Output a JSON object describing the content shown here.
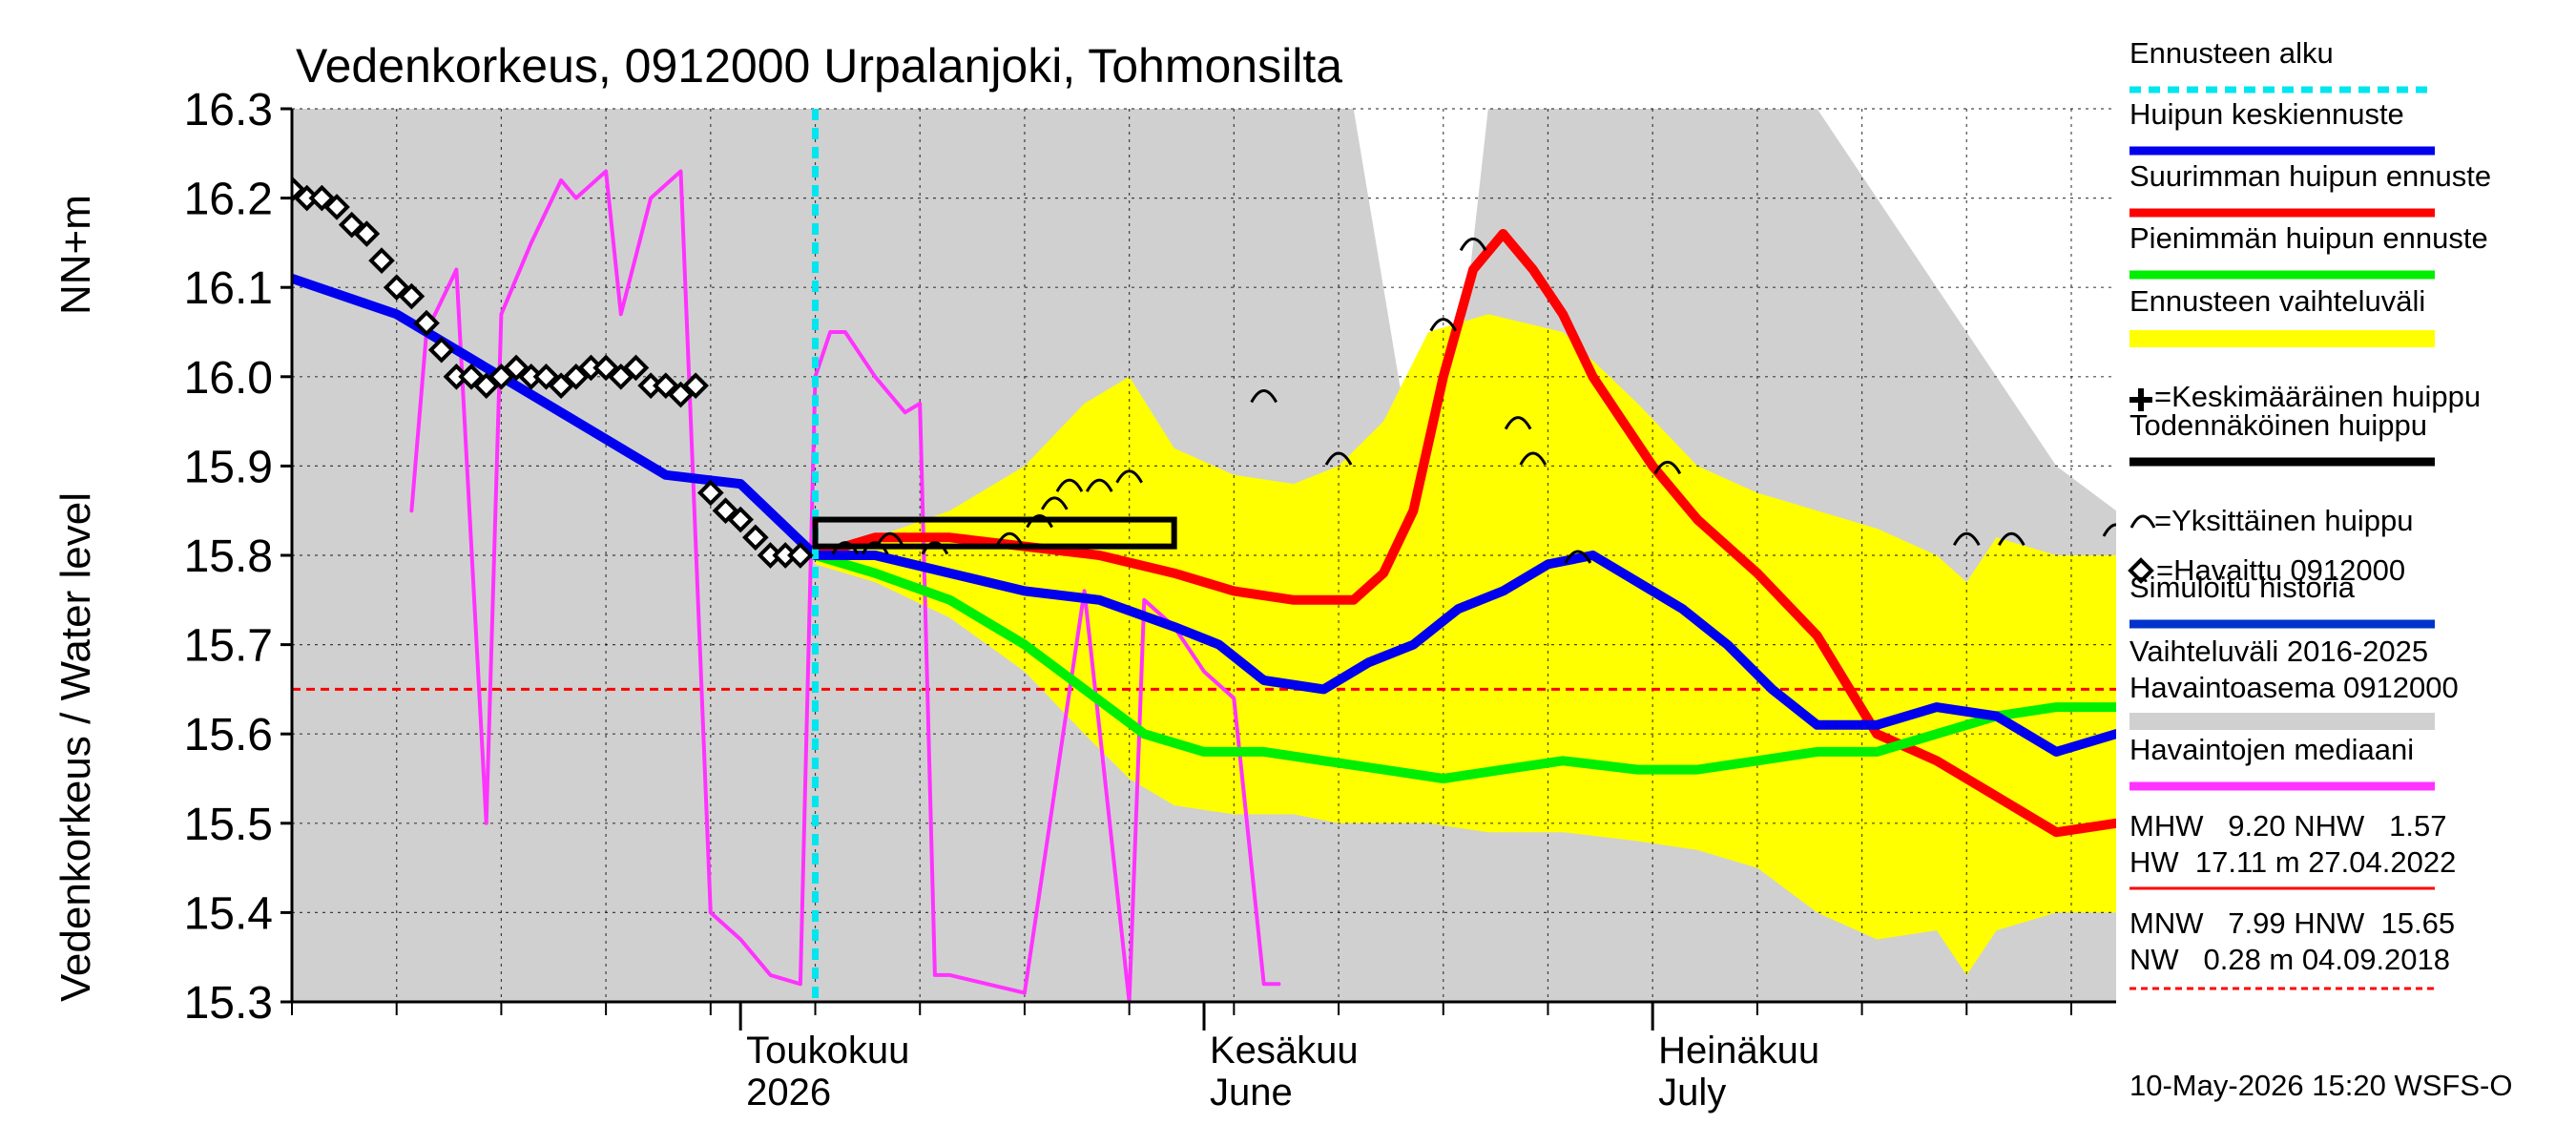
{
  "chart_data": {
    "type": "line",
    "title": "Vedenkorkeus, 0912000 Urpalanjoki, Tohmonsilta",
    "ylabel_left": "Vedenkorkeus / Water level",
    "ylabel_right": "NN+m",
    "ylim": [
      15.3,
      16.3
    ],
    "yticks": [
      "15.3",
      "15.4",
      "15.5",
      "15.6",
      "15.7",
      "15.8",
      "15.9",
      "16.0",
      "16.1",
      "16.2",
      "16.3"
    ],
    "x_range": [
      "2026-04-01",
      "2026-08-01"
    ],
    "x_month_labels": [
      {
        "date": "2026-05-01",
        "line1": "Toukokuu",
        "line2": "2026"
      },
      {
        "date": "2026-06-01",
        "line1": "Kesäkuu",
        "line2": "June"
      },
      {
        "date": "2026-07-01",
        "line1": "Heinäkuu",
        "line2": "July"
      }
    ],
    "grid": true,
    "forecast_start": "2026-05-06",
    "series": [
      {
        "name": "Vaihteluväli 2016-2025 Havaintoasema 0912000",
        "type": "band",
        "color": "#d0d0d0",
        "x": [
          "2026-04-01",
          "2026-04-15",
          "2026-04-22",
          "2026-05-01",
          "2026-05-06",
          "2026-05-11",
          "2026-05-16",
          "2026-05-21",
          "2026-05-26",
          "2026-06-01",
          "2026-06-06",
          "2026-06-11",
          "2026-06-14",
          "2026-06-16",
          "2026-06-18",
          "2026-06-20",
          "2026-06-22",
          "2026-06-25",
          "2026-06-28",
          "2026-07-01",
          "2026-07-04",
          "2026-07-08",
          "2026-07-12",
          "2026-07-16",
          "2026-07-20",
          "2026-07-24",
          "2026-07-28",
          "2026-08-01"
        ],
        "upper": [
          16.3,
          16.3,
          16.3,
          16.3,
          16.3,
          16.3,
          16.3,
          16.3,
          16.3,
          16.3,
          16.3,
          16.3,
          16.0,
          15.8,
          16.0,
          16.3,
          16.3,
          16.3,
          16.3,
          16.3,
          16.3,
          16.3,
          16.3,
          16.2,
          16.1,
          16.0,
          15.9,
          15.85
        ],
        "lower": [
          15.3,
          15.3,
          15.3,
          15.3,
          15.3,
          15.3,
          15.3,
          15.3,
          15.3,
          15.3,
          15.3,
          15.3,
          15.3,
          15.3,
          15.3,
          15.3,
          15.3,
          15.3,
          15.3,
          15.3,
          15.3,
          15.3,
          15.3,
          15.3,
          15.3,
          15.3,
          15.3,
          15.3
        ]
      },
      {
        "name": "Ennusteen vaihteluväli",
        "type": "band",
        "color": "#ffff00",
        "x": [
          "2026-05-06",
          "2026-05-10",
          "2026-05-15",
          "2026-05-20",
          "2026-05-24",
          "2026-05-27",
          "2026-05-30",
          "2026-06-03",
          "2026-06-07",
          "2026-06-10",
          "2026-06-13",
          "2026-06-16",
          "2026-06-20",
          "2026-06-25",
          "2026-06-30",
          "2026-07-04",
          "2026-07-08",
          "2026-07-12",
          "2026-07-16",
          "2026-07-20",
          "2026-07-22",
          "2026-07-24",
          "2026-07-28",
          "2026-08-01"
        ],
        "upper": [
          15.8,
          15.82,
          15.85,
          15.9,
          15.97,
          16.0,
          15.92,
          15.89,
          15.88,
          15.9,
          15.95,
          16.05,
          16.07,
          16.05,
          15.97,
          15.9,
          15.87,
          15.85,
          15.83,
          15.8,
          15.77,
          15.82,
          15.8,
          15.8
        ],
        "lower": [
          15.79,
          15.77,
          15.73,
          15.67,
          15.6,
          15.55,
          15.52,
          15.51,
          15.51,
          15.5,
          15.5,
          15.5,
          15.49,
          15.49,
          15.48,
          15.47,
          15.45,
          15.4,
          15.37,
          15.38,
          15.33,
          15.38,
          15.4,
          15.4
        ]
      },
      {
        "name": "Havaintojen mediaani",
        "type": "line",
        "color": "#ff33ff",
        "x": [
          "2026-04-09",
          "2026-04-10",
          "2026-04-12",
          "2026-04-14",
          "2026-04-15",
          "2026-04-17",
          "2026-04-19",
          "2026-04-20",
          "2026-04-22",
          "2026-04-23",
          "2026-04-25",
          "2026-04-27",
          "2026-04-29",
          "2026-05-01",
          "2026-05-03",
          "2026-05-05",
          "2026-05-06",
          "2026-05-07",
          "2026-05-08",
          "2026-05-10",
          "2026-05-12",
          "2026-05-13",
          "2026-05-14",
          "2026-05-15",
          "2026-05-20",
          "2026-05-24",
          "2026-05-27",
          "2026-05-28",
          "2026-05-30",
          "2026-06-01",
          "2026-06-03",
          "2026-06-05",
          "2026-06-06"
        ],
        "y": [
          15.85,
          16.05,
          16.12,
          15.5,
          16.07,
          16.15,
          16.22,
          16.2,
          16.23,
          16.07,
          16.2,
          16.23,
          15.4,
          15.37,
          15.33,
          15.32,
          16.0,
          16.05,
          16.05,
          16.0,
          15.96,
          15.97,
          15.33,
          15.33,
          15.31,
          15.76,
          15.3,
          15.75,
          15.72,
          15.67,
          15.64,
          15.32,
          15.32
        ]
      },
      {
        "name": "Suurimman huipun ennuste",
        "type": "line",
        "color": "#ff0000",
        "x": [
          "2026-05-06",
          "2026-05-10",
          "2026-05-15",
          "2026-05-20",
          "2026-05-25",
          "2026-05-30",
          "2026-06-03",
          "2026-06-07",
          "2026-06-11",
          "2026-06-13",
          "2026-06-15",
          "2026-06-17",
          "2026-06-19",
          "2026-06-21",
          "2026-06-23",
          "2026-06-25",
          "2026-06-27",
          "2026-06-29",
          "2026-07-01",
          "2026-07-04",
          "2026-07-08",
          "2026-07-12",
          "2026-07-16",
          "2026-07-20",
          "2026-07-24",
          "2026-07-28",
          "2026-08-01"
        ],
        "y": [
          15.8,
          15.82,
          15.82,
          15.81,
          15.8,
          15.78,
          15.76,
          15.75,
          15.75,
          15.78,
          15.85,
          16.0,
          16.12,
          16.16,
          16.12,
          16.07,
          16.0,
          15.95,
          15.9,
          15.84,
          15.78,
          15.71,
          15.6,
          15.57,
          15.53,
          15.49,
          15.5
        ]
      },
      {
        "name": "Pienimmän huipun ennuste",
        "type": "line",
        "color": "#00ee00",
        "x": [
          "2026-05-06",
          "2026-05-10",
          "2026-05-15",
          "2026-05-20",
          "2026-05-24",
          "2026-05-28",
          "2026-06-01",
          "2026-06-05",
          "2026-06-09",
          "2026-06-13",
          "2026-06-17",
          "2026-06-21",
          "2026-06-25",
          "2026-06-30",
          "2026-07-04",
          "2026-07-08",
          "2026-07-12",
          "2026-07-16",
          "2026-07-20",
          "2026-07-24",
          "2026-07-28",
          "2026-08-01"
        ],
        "y": [
          15.8,
          15.78,
          15.75,
          15.7,
          15.65,
          15.6,
          15.58,
          15.58,
          15.57,
          15.56,
          15.55,
          15.56,
          15.57,
          15.56,
          15.56,
          15.57,
          15.58,
          15.58,
          15.6,
          15.62,
          15.63,
          15.63
        ]
      },
      {
        "name": "Huipun keskiennuste",
        "type": "line",
        "color": "#0000ee",
        "x": [
          "2026-04-01",
          "2026-04-08",
          "2026-04-15",
          "2026-04-22",
          "2026-04-26",
          "2026-05-01",
          "2026-05-06",
          "2026-05-10",
          "2026-05-15",
          "2026-05-20",
          "2026-05-25",
          "2026-05-30",
          "2026-06-02",
          "2026-06-05",
          "2026-06-09",
          "2026-06-12",
          "2026-06-15",
          "2026-06-18",
          "2026-06-21",
          "2026-06-24",
          "2026-06-27",
          "2026-06-30",
          "2026-07-03",
          "2026-07-06",
          "2026-07-09",
          "2026-07-12",
          "2026-07-16",
          "2026-07-20",
          "2026-07-24",
          "2026-07-28",
          "2026-08-01"
        ],
        "y": [
          16.11,
          16.07,
          16.0,
          15.93,
          15.89,
          15.88,
          15.8,
          15.8,
          15.78,
          15.76,
          15.75,
          15.72,
          15.7,
          15.66,
          15.65,
          15.68,
          15.7,
          15.74,
          15.76,
          15.79,
          15.8,
          15.77,
          15.74,
          15.7,
          15.65,
          15.61,
          15.61,
          15.63,
          15.62,
          15.58,
          15.6
        ]
      },
      {
        "name": "Havaittu 0912000",
        "type": "scatter",
        "color": "#000000",
        "marker": "diamond",
        "x": [
          "2026-04-01",
          "2026-04-02",
          "2026-04-03",
          "2026-04-04",
          "2026-04-05",
          "2026-04-06",
          "2026-04-07",
          "2026-04-08",
          "2026-04-09",
          "2026-04-10",
          "2026-04-11",
          "2026-04-12",
          "2026-04-13",
          "2026-04-14",
          "2026-04-15",
          "2026-04-16",
          "2026-04-17",
          "2026-04-18",
          "2026-04-19",
          "2026-04-20",
          "2026-04-21",
          "2026-04-22",
          "2026-04-23",
          "2026-04-24",
          "2026-04-25",
          "2026-04-26",
          "2026-04-27",
          "2026-04-28",
          "2026-04-29",
          "2026-04-30",
          "2026-05-01",
          "2026-05-02",
          "2026-05-03",
          "2026-05-04",
          "2026-05-05"
        ],
        "y": [
          16.21,
          16.2,
          16.2,
          16.19,
          16.17,
          16.16,
          16.13,
          16.1,
          16.09,
          16.06,
          16.03,
          16.0,
          16.0,
          15.99,
          16.0,
          16.01,
          16.0,
          16.0,
          15.99,
          16.0,
          16.01,
          16.01,
          16.0,
          16.01,
          15.99,
          15.99,
          15.98,
          15.99,
          15.87,
          15.85,
          15.84,
          15.82,
          15.8,
          15.8,
          15.8
        ]
      },
      {
        "name": "Yksittäinen huippu",
        "type": "scatter",
        "color": "#000000",
        "marker": "arc",
        "x": [
          "2026-05-08",
          "2026-05-10",
          "2026-05-11",
          "2026-05-14",
          "2026-05-19",
          "2026-05-21",
          "2026-05-22",
          "2026-05-23",
          "2026-05-25",
          "2026-05-27",
          "2026-06-05",
          "2026-06-10",
          "2026-06-17",
          "2026-06-19",
          "2026-06-22",
          "2026-06-23",
          "2026-06-26",
          "2026-07-02",
          "2026-07-22",
          "2026-07-25",
          "2026-08-01"
        ],
        "y": [
          15.81,
          15.81,
          15.82,
          15.81,
          15.82,
          15.84,
          15.86,
          15.88,
          15.88,
          15.89,
          15.98,
          15.91,
          16.06,
          16.15,
          15.95,
          15.91,
          15.8,
          15.9,
          15.82,
          15.82,
          15.83
        ]
      }
    ],
    "likely_peak_box": {
      "x0": "2026-05-06",
      "x1": "2026-05-30",
      "y0": 15.81,
      "y1": 15.84
    },
    "reference_lines": [
      {
        "name": "HNW",
        "value": 15.65,
        "color": "#ff0000",
        "style": "dashed"
      }
    ],
    "legend": {
      "placement": "right",
      "entries": [
        {
          "label": "Ennusteen alku",
          "kind": "dashed",
          "color": "#00e5ee"
        },
        {
          "label": "Huipun keskiennuste",
          "kind": "line",
          "color": "#0000ee"
        },
        {
          "label": "Suurimman huipun ennuste",
          "kind": "line",
          "color": "#ff0000"
        },
        {
          "label": "Pienimmän huipun ennuste",
          "kind": "line",
          "color": "#00ee00"
        },
        {
          "label": "Ennusteen vaihteluväli",
          "kind": "band",
          "color": "#ffff00"
        },
        {
          "label": "=Keskimääräinen huippu",
          "kind": "plus",
          "color": "#000000"
        },
        {
          "label": "Todennäköinen huippu",
          "kind": "line",
          "color": "#000000"
        },
        {
          "label": "=Yksittäinen huippu",
          "kind": "arc",
          "color": "#000000"
        },
        {
          "label": "=Havaittu 0912000",
          "kind": "diamond",
          "color": "#000000"
        },
        {
          "label": "Simuloitu historia",
          "kind": "line",
          "color": "#0033cc"
        },
        {
          "label": "Vaihteluväli 2016-2025",
          "label2": "Havaintoasema 0912000",
          "kind": "band2",
          "color": "#d0d0d0"
        },
        {
          "label": "Havaintojen mediaani",
          "kind": "line",
          "color": "#ff33ff"
        }
      ]
    },
    "stats": {
      "line1": "MHW   9.20 NHW   1.57",
      "line2": "HW  17.11 m 27.04.2022",
      "line3": "MNW   7.99 HNW  15.65",
      "line4": "NW   0.28 m 04.09.2018"
    },
    "footer": "10-May-2026 15:20 WSFS-O"
  }
}
